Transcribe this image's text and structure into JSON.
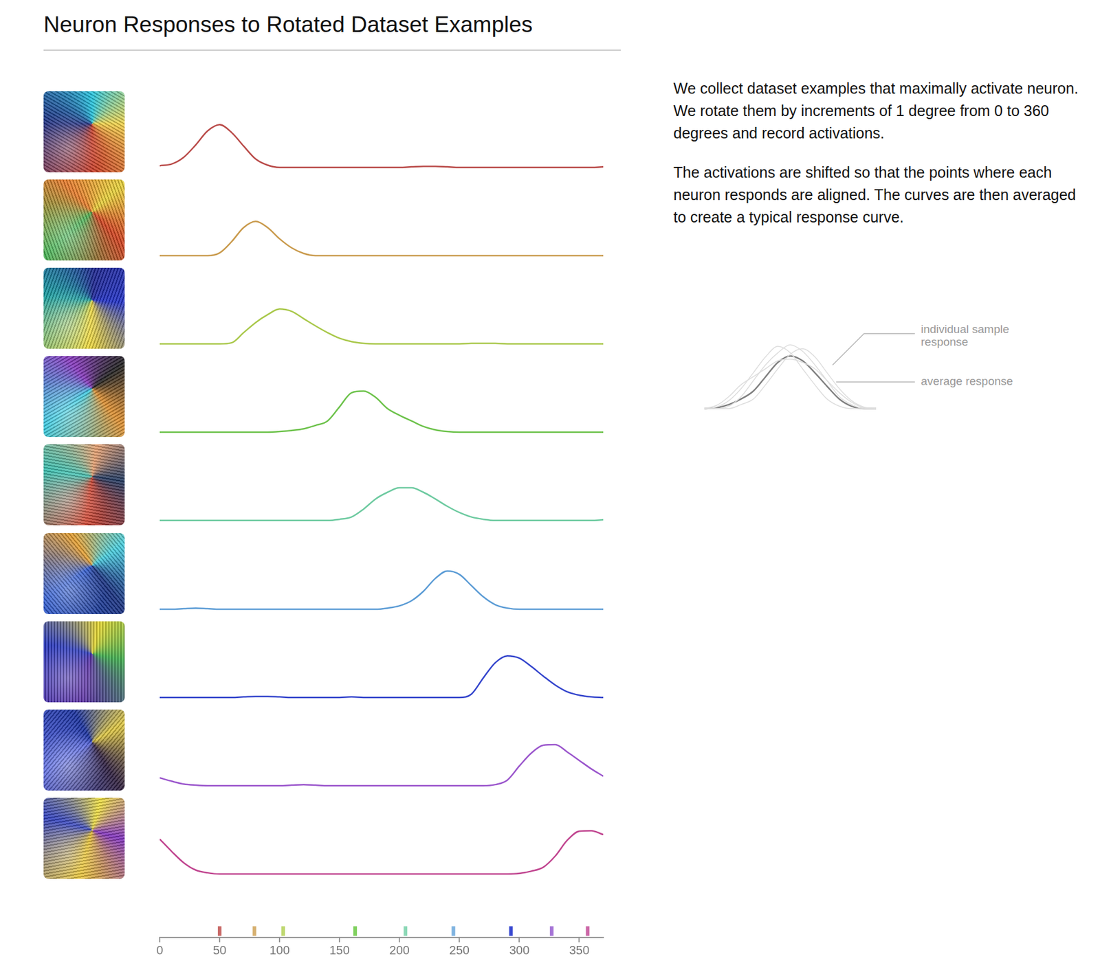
{
  "title": "Neuron Responses to Rotated Dataset Examples",
  "description": [
    "We collect dataset examples that maximally activate neuron. We rotate them by increments of 1 degree from 0 to 360 degrees and record activations.",
    "The activations are shifted so that the points where each neuron responds are aligned. The curves are then averaged to create a typical response curve."
  ],
  "chart_data": [
    {
      "type": "line",
      "color": "#b94a48",
      "xlim": [
        0,
        370
      ],
      "ylim": [
        0,
        1
      ],
      "tick_labels": false,
      "x": [
        0,
        10,
        20,
        30,
        40,
        50,
        60,
        70,
        80,
        90,
        100,
        110,
        120,
        130,
        140,
        150,
        160,
        170,
        180,
        190,
        200,
        210,
        220,
        230,
        240,
        250,
        260,
        270,
        280,
        290,
        300,
        310,
        320,
        330,
        340,
        350,
        360,
        370
      ],
      "values": [
        0.03,
        0.06,
        0.18,
        0.4,
        0.65,
        0.76,
        0.62,
        0.38,
        0.15,
        0.04,
        0,
        0,
        0,
        0,
        0,
        0,
        0,
        0,
        0,
        0,
        0,
        0.01,
        0.02,
        0.02,
        0.01,
        0,
        0,
        0,
        0,
        0,
        0,
        0,
        0,
        0,
        0,
        0,
        0,
        0.01
      ]
    },
    {
      "type": "line",
      "color": "#c99a4c",
      "xlim": [
        0,
        370
      ],
      "ylim": [
        0,
        1
      ],
      "tick_labels": false,
      "x": [
        0,
        10,
        20,
        30,
        40,
        50,
        60,
        70,
        80,
        90,
        100,
        110,
        120,
        130,
        140,
        150,
        160,
        170,
        180,
        190,
        200,
        210,
        220,
        230,
        240,
        250,
        260,
        270,
        280,
        290,
        300,
        310,
        320,
        330,
        340,
        350,
        360,
        370
      ],
      "values": [
        0,
        0,
        0,
        0,
        0,
        0.05,
        0.25,
        0.5,
        0.61,
        0.5,
        0.3,
        0.14,
        0.04,
        0,
        0,
        0,
        0,
        0,
        0,
        0,
        0,
        0,
        0,
        0,
        0,
        0,
        0,
        0,
        0,
        0,
        0,
        0,
        0,
        0,
        0,
        0,
        0,
        0
      ]
    },
    {
      "type": "line",
      "color": "#a9c84a",
      "xlim": [
        0,
        370
      ],
      "ylim": [
        0,
        1
      ],
      "tick_labels": false,
      "x": [
        0,
        10,
        20,
        30,
        40,
        50,
        60,
        70,
        80,
        90,
        100,
        110,
        120,
        130,
        140,
        150,
        160,
        170,
        180,
        190,
        200,
        210,
        220,
        230,
        240,
        250,
        260,
        270,
        280,
        290,
        300,
        310,
        320,
        330,
        340,
        350,
        360,
        370
      ],
      "values": [
        0,
        0,
        0,
        0,
        0,
        0,
        0.02,
        0.2,
        0.38,
        0.52,
        0.62,
        0.58,
        0.45,
        0.32,
        0.2,
        0.1,
        0.04,
        0.01,
        0,
        0,
        0,
        0,
        0,
        0,
        0,
        0,
        0.01,
        0.01,
        0.01,
        0,
        0,
        0,
        0,
        0,
        0,
        0,
        0,
        0
      ]
    },
    {
      "type": "line",
      "color": "#6cc24a",
      "xlim": [
        0,
        370
      ],
      "ylim": [
        0,
        1
      ],
      "tick_labels": false,
      "x": [
        0,
        10,
        20,
        30,
        40,
        50,
        60,
        70,
        80,
        90,
        100,
        110,
        120,
        130,
        140,
        150,
        160,
        170,
        180,
        190,
        200,
        210,
        220,
        230,
        240,
        250,
        260,
        270,
        280,
        290,
        300,
        310,
        320,
        330,
        340,
        350,
        360,
        370
      ],
      "values": [
        0,
        0,
        0,
        0,
        0,
        0,
        0,
        0,
        0,
        0,
        0.01,
        0.03,
        0.06,
        0.12,
        0.2,
        0.45,
        0.7,
        0.73,
        0.62,
        0.42,
        0.3,
        0.2,
        0.1,
        0.04,
        0.01,
        0,
        0,
        0,
        0,
        0,
        0,
        0,
        0,
        0,
        0,
        0,
        0,
        0
      ]
    },
    {
      "type": "line",
      "color": "#6dcaa0",
      "xlim": [
        0,
        370
      ],
      "ylim": [
        0,
        1
      ],
      "tick_labels": false,
      "x": [
        0,
        10,
        20,
        30,
        40,
        50,
        60,
        70,
        80,
        90,
        100,
        110,
        120,
        130,
        140,
        150,
        160,
        170,
        180,
        190,
        200,
        210,
        220,
        230,
        240,
        250,
        260,
        270,
        280,
        290,
        300,
        310,
        320,
        330,
        340,
        350,
        360,
        370
      ],
      "values": [
        0,
        0,
        0,
        0,
        0,
        0,
        0,
        0,
        0,
        0,
        0,
        0,
        0,
        0,
        0,
        0.02,
        0.06,
        0.2,
        0.38,
        0.5,
        0.58,
        0.58,
        0.5,
        0.38,
        0.25,
        0.14,
        0.06,
        0.02,
        0,
        0,
        0,
        0,
        0,
        0,
        0,
        0,
        0,
        0.01
      ]
    },
    {
      "type": "line",
      "color": "#5a9bd5",
      "xlim": [
        0,
        370
      ],
      "ylim": [
        0,
        1
      ],
      "tick_labels": false,
      "x": [
        0,
        10,
        20,
        30,
        40,
        50,
        60,
        70,
        80,
        90,
        100,
        110,
        120,
        130,
        140,
        150,
        160,
        170,
        180,
        190,
        200,
        210,
        220,
        230,
        240,
        250,
        260,
        270,
        280,
        290,
        300,
        310,
        320,
        330,
        340,
        350,
        360,
        370
      ],
      "values": [
        0,
        0,
        0.01,
        0.02,
        0.01,
        0,
        0,
        0,
        0,
        0,
        0,
        0,
        0,
        0,
        0,
        0,
        0,
        0,
        0,
        0.02,
        0.06,
        0.15,
        0.32,
        0.55,
        0.68,
        0.62,
        0.42,
        0.22,
        0.08,
        0.02,
        0,
        0,
        0,
        0,
        0,
        0,
        0,
        0
      ]
    },
    {
      "type": "line",
      "color": "#3344cc",
      "xlim": [
        0,
        370
      ],
      "ylim": [
        0,
        1
      ],
      "tick_labels": false,
      "x": [
        0,
        10,
        20,
        30,
        40,
        50,
        60,
        70,
        80,
        90,
        100,
        110,
        120,
        130,
        140,
        150,
        160,
        170,
        180,
        190,
        200,
        210,
        220,
        230,
        240,
        250,
        260,
        270,
        280,
        290,
        300,
        310,
        320,
        330,
        340,
        350,
        360,
        370
      ],
      "values": [
        0,
        0,
        0,
        0,
        0,
        0,
        0,
        0.01,
        0.02,
        0.02,
        0.01,
        0,
        0,
        0,
        0,
        0,
        0.01,
        0,
        0,
        0,
        0,
        0,
        0,
        0,
        0,
        0,
        0.06,
        0.35,
        0.62,
        0.74,
        0.7,
        0.55,
        0.38,
        0.22,
        0.1,
        0.04,
        0.01,
        0
      ]
    },
    {
      "type": "line",
      "color": "#9a55cc",
      "xlim": [
        0,
        370
      ],
      "ylim": [
        0,
        1
      ],
      "tick_labels": false,
      "x": [
        0,
        10,
        20,
        30,
        40,
        50,
        60,
        70,
        80,
        90,
        100,
        110,
        120,
        130,
        140,
        150,
        160,
        170,
        180,
        190,
        200,
        210,
        220,
        230,
        240,
        250,
        260,
        270,
        280,
        290,
        300,
        310,
        320,
        330,
        340,
        350,
        360,
        370
      ],
      "values": [
        0.14,
        0.08,
        0.03,
        0.01,
        0,
        0,
        0,
        0,
        0,
        0,
        0,
        0.01,
        0.02,
        0.01,
        0,
        0,
        0,
        0,
        0,
        0,
        0,
        0,
        0,
        0,
        0,
        0,
        0,
        0,
        0.02,
        0.1,
        0.35,
        0.58,
        0.72,
        0.73,
        0.6,
        0.45,
        0.3,
        0.17
      ]
    },
    {
      "type": "line",
      "color": "#c0448f",
      "xlim": [
        0,
        370
      ],
      "ylim": [
        0,
        1
      ],
      "tick_labels": false,
      "x": [
        0,
        10,
        20,
        30,
        40,
        50,
        60,
        70,
        80,
        90,
        100,
        110,
        120,
        130,
        140,
        150,
        160,
        170,
        180,
        190,
        200,
        210,
        220,
        230,
        240,
        250,
        260,
        270,
        280,
        290,
        300,
        310,
        320,
        330,
        340,
        350,
        360,
        370
      ],
      "values": [
        0.62,
        0.4,
        0.2,
        0.07,
        0.02,
        0,
        0,
        0,
        0,
        0,
        0,
        0,
        0,
        0,
        0,
        0,
        0,
        0,
        0,
        0,
        0,
        0,
        0,
        0,
        0,
        0,
        0,
        0,
        0,
        0,
        0.01,
        0.05,
        0.12,
        0.32,
        0.6,
        0.76,
        0.77,
        0.7
      ]
    }
  ],
  "x_axis": {
    "xlim": [
      0,
      370
    ],
    "xticks": [
      0,
      50,
      100,
      150,
      200,
      250,
      300,
      350
    ],
    "peak_markers": [
      {
        "value": 50,
        "color": "#c96a68"
      },
      {
        "value": 79,
        "color": "#d6b070"
      },
      {
        "value": 103,
        "color": "#bfd870"
      },
      {
        "value": 163,
        "color": "#7fd05e"
      },
      {
        "value": 205,
        "color": "#8cd8b6"
      },
      {
        "value": 245,
        "color": "#7fb3e0"
      },
      {
        "value": 293,
        "color": "#3a4ad0"
      },
      {
        "value": 327,
        "color": "#a574d6"
      },
      {
        "value": 357,
        "color": "#cc68a8"
      }
    ]
  },
  "legend_diagram": {
    "type": "line",
    "xlim": [
      0,
      14
    ],
    "ylim": [
      0,
      1
    ],
    "tick_labels": false,
    "x": [
      0,
      1,
      2,
      3,
      4,
      5,
      6,
      7,
      8,
      9,
      10,
      11,
      12,
      13,
      14
    ],
    "series": [
      {
        "name": "individual sample response",
        "color": "#dddddd",
        "samples": [
          [
            0,
            0,
            0.03,
            0.15,
            0.35,
            0.55,
            0.7,
            0.8,
            0.72,
            0.55,
            0.35,
            0.15,
            0.05,
            0,
            0
          ],
          [
            0,
            0.02,
            0.1,
            0.25,
            0.45,
            0.65,
            0.78,
            0.7,
            0.5,
            0.3,
            0.12,
            0.03,
            0,
            0,
            0
          ],
          [
            0,
            0,
            0,
            0.05,
            0.12,
            0.3,
            0.5,
            0.68,
            0.75,
            0.65,
            0.45,
            0.25,
            0.1,
            0.02,
            0
          ],
          [
            0,
            0.04,
            0.15,
            0.3,
            0.4,
            0.5,
            0.6,
            0.62,
            0.58,
            0.5,
            0.35,
            0.2,
            0.08,
            0.01,
            0
          ]
        ]
      },
      {
        "name": "average response",
        "color": "#808080",
        "values": [
          0,
          0.01,
          0.05,
          0.12,
          0.22,
          0.4,
          0.58,
          0.66,
          0.6,
          0.45,
          0.28,
          0.12,
          0.03,
          0,
          0
        ]
      }
    ]
  }
}
